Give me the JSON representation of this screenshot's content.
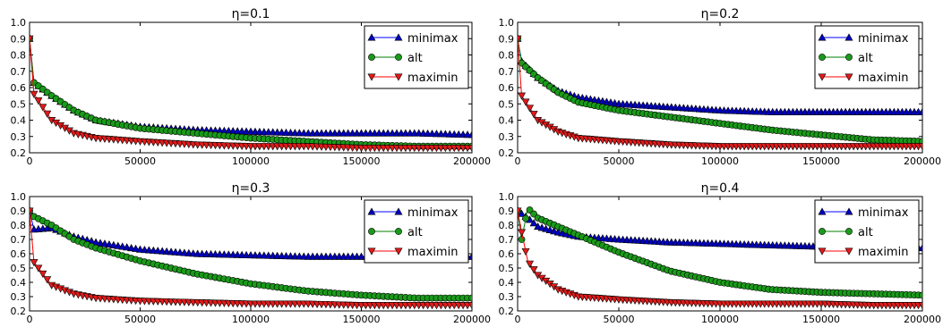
{
  "chart_data": [
    {
      "type": "line",
      "title": "η=0.1",
      "xlim": [
        0,
        200000
      ],
      "ylim": [
        0.2,
        1.0
      ],
      "xticks": [
        0,
        50000,
        100000,
        150000,
        200000
      ],
      "yticks": [
        0.2,
        0.3,
        0.4,
        0.5,
        0.6,
        0.7,
        0.8,
        0.9,
        1.0
      ],
      "legend_position": "top-right",
      "series": [
        {
          "name": "minimax",
          "color": "#0000ff",
          "marker": "triangle-up",
          "x": [
            0,
            2000,
            10000,
            20000,
            30000,
            50000,
            75000,
            100000,
            125000,
            150000,
            175000,
            200000
          ],
          "y": [
            0.9,
            0.63,
            0.55,
            0.46,
            0.4,
            0.36,
            0.34,
            0.33,
            0.32,
            0.32,
            0.32,
            0.31
          ]
        },
        {
          "name": "alt",
          "color": "#008000",
          "marker": "circle",
          "x": [
            0,
            2000,
            10000,
            20000,
            30000,
            50000,
            75000,
            100000,
            125000,
            150000,
            175000,
            200000
          ],
          "y": [
            0.9,
            0.63,
            0.55,
            0.46,
            0.4,
            0.35,
            0.32,
            0.29,
            0.27,
            0.25,
            0.24,
            0.24
          ]
        },
        {
          "name": "maximin",
          "color": "#ff0000",
          "marker": "triangle-down",
          "x": [
            0,
            2000,
            10000,
            20000,
            30000,
            50000,
            75000,
            100000,
            125000,
            150000,
            175000,
            200000
          ],
          "y": [
            0.9,
            0.56,
            0.4,
            0.32,
            0.29,
            0.27,
            0.25,
            0.24,
            0.24,
            0.23,
            0.23,
            0.23
          ]
        }
      ]
    },
    {
      "type": "line",
      "title": "η=0.2",
      "xlim": [
        0,
        200000
      ],
      "ylim": [
        0.2,
        1.0
      ],
      "xticks": [
        0,
        50000,
        100000,
        150000,
        200000
      ],
      "yticks": [
        0.2,
        0.3,
        0.4,
        0.5,
        0.6,
        0.7,
        0.8,
        0.9,
        1.0
      ],
      "legend_position": "top-right",
      "series": [
        {
          "name": "minimax",
          "color": "#0000ff",
          "marker": "triangle-up",
          "x": [
            0,
            2000,
            10000,
            20000,
            30000,
            50000,
            75000,
            100000,
            125000,
            150000,
            175000,
            200000
          ],
          "y": [
            0.9,
            0.76,
            0.66,
            0.58,
            0.54,
            0.5,
            0.48,
            0.46,
            0.45,
            0.45,
            0.45,
            0.45
          ]
        },
        {
          "name": "alt",
          "color": "#008000",
          "marker": "circle",
          "x": [
            0,
            2000,
            10000,
            20000,
            30000,
            50000,
            75000,
            100000,
            125000,
            150000,
            175000,
            200000
          ],
          "y": [
            0.9,
            0.75,
            0.66,
            0.57,
            0.51,
            0.46,
            0.42,
            0.38,
            0.34,
            0.31,
            0.28,
            0.27
          ]
        },
        {
          "name": "maximin",
          "color": "#ff0000",
          "marker": "triangle-down",
          "x": [
            0,
            2000,
            10000,
            20000,
            30000,
            50000,
            75000,
            100000,
            125000,
            150000,
            175000,
            200000
          ],
          "y": [
            0.9,
            0.55,
            0.4,
            0.33,
            0.29,
            0.27,
            0.25,
            0.24,
            0.24,
            0.24,
            0.24,
            0.24
          ]
        }
      ]
    },
    {
      "type": "line",
      "title": "η=0.3",
      "xlim": [
        0,
        200000
      ],
      "ylim": [
        0.2,
        1.0
      ],
      "xticks": [
        0,
        50000,
        100000,
        150000,
        200000
      ],
      "yticks": [
        0.2,
        0.3,
        0.4,
        0.5,
        0.6,
        0.7,
        0.8,
        0.9,
        1.0
      ],
      "legend_position": "top-right",
      "series": [
        {
          "name": "minimax",
          "color": "#0000ff",
          "marker": "triangle-up",
          "x": [
            0,
            2000,
            10000,
            20000,
            30000,
            50000,
            75000,
            100000,
            125000,
            150000,
            175000,
            200000
          ],
          "y": [
            0.9,
            0.77,
            0.78,
            0.72,
            0.68,
            0.63,
            0.6,
            0.59,
            0.58,
            0.58,
            0.58,
            0.58
          ]
        },
        {
          "name": "alt",
          "color": "#008000",
          "marker": "circle",
          "x": [
            0,
            2000,
            10000,
            20000,
            30000,
            50000,
            75000,
            100000,
            125000,
            150000,
            175000,
            200000
          ],
          "y": [
            0.9,
            0.86,
            0.8,
            0.7,
            0.64,
            0.55,
            0.46,
            0.39,
            0.34,
            0.31,
            0.29,
            0.29
          ]
        },
        {
          "name": "maximin",
          "color": "#ff0000",
          "marker": "triangle-down",
          "x": [
            0,
            2000,
            10000,
            20000,
            30000,
            50000,
            75000,
            100000,
            125000,
            150000,
            175000,
            200000
          ],
          "y": [
            0.9,
            0.54,
            0.38,
            0.32,
            0.29,
            0.27,
            0.26,
            0.25,
            0.25,
            0.24,
            0.24,
            0.24
          ]
        }
      ]
    },
    {
      "type": "line",
      "title": "η=0.4",
      "xlim": [
        0,
        200000
      ],
      "ylim": [
        0.2,
        1.0
      ],
      "xticks": [
        0,
        50000,
        100000,
        150000,
        200000
      ],
      "yticks": [
        0.2,
        0.3,
        0.4,
        0.5,
        0.6,
        0.7,
        0.8,
        0.9,
        1.0
      ],
      "legend_position": "top-right",
      "series": [
        {
          "name": "minimax",
          "color": "#0000ff",
          "marker": "triangle-up",
          "x": [
            0,
            2000,
            5000,
            10000,
            20000,
            30000,
            50000,
            75000,
            100000,
            125000,
            150000,
            175000,
            200000
          ],
          "y": [
            0.9,
            0.88,
            0.85,
            0.79,
            0.75,
            0.72,
            0.7,
            0.68,
            0.67,
            0.66,
            0.65,
            0.65,
            0.64
          ]
        },
        {
          "name": "alt",
          "color": "#008000",
          "marker": "circle",
          "x": [
            0,
            2000,
            5000,
            10000,
            20000,
            30000,
            50000,
            75000,
            100000,
            125000,
            150000,
            175000,
            200000
          ],
          "y": [
            0.9,
            0.7,
            0.92,
            0.85,
            0.79,
            0.73,
            0.61,
            0.48,
            0.4,
            0.35,
            0.33,
            0.32,
            0.31
          ]
        },
        {
          "name": "maximin",
          "color": "#ff0000",
          "marker": "triangle-down",
          "x": [
            0,
            2000,
            5000,
            10000,
            20000,
            30000,
            50000,
            75000,
            100000,
            125000,
            150000,
            175000,
            200000
          ],
          "y": [
            0.9,
            0.75,
            0.55,
            0.45,
            0.35,
            0.3,
            0.28,
            0.26,
            0.25,
            0.25,
            0.25,
            0.24,
            0.24
          ]
        }
      ]
    }
  ]
}
